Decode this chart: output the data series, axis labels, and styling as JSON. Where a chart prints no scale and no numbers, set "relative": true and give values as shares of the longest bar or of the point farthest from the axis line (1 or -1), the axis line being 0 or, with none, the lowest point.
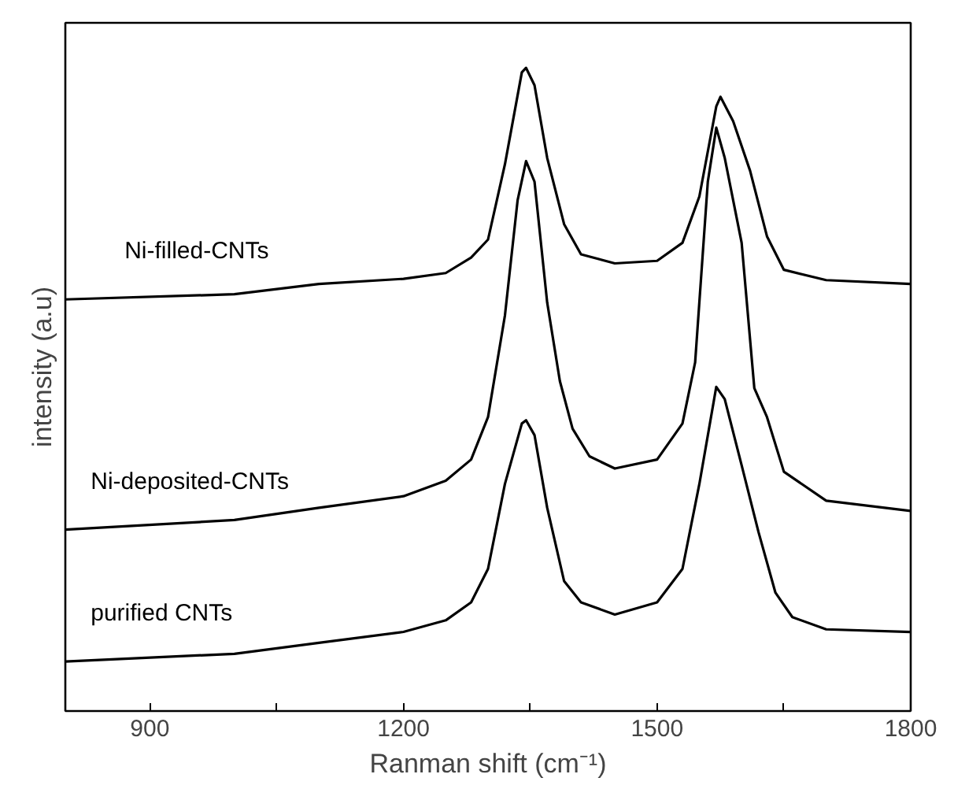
{
  "chart_data": {
    "type": "line",
    "xlabel": "Ranman shift (cm⁻¹)",
    "ylabel": "intensity (a.u)",
    "relative": true,
    "xlim": [
      800,
      1800
    ],
    "xticks": [
      900,
      {
        "value": 1050,
        "label": null
      },
      1200,
      {
        "value": 1350,
        "label": null
      },
      1500,
      {
        "value": 1650,
        "label": null
      },
      1800
    ],
    "grid": false,
    "legend": false,
    "marker": "none",
    "line_style": "solid",
    "series": [
      {
        "name": "Ni-filled-CNTs",
        "color": "#000000",
        "x": [
          800,
          1000,
          1100,
          1200,
          1250,
          1280,
          1300,
          1320,
          1340,
          1345,
          1355,
          1370,
          1390,
          1410,
          1450,
          1500,
          1530,
          1550,
          1570,
          1575,
          1590,
          1610,
          1630,
          1650,
          1700,
          1800
        ],
        "values": [
          0.64,
          0.648,
          0.664,
          0.672,
          0.681,
          0.705,
          0.733,
          0.85,
          0.993,
          1.0,
          0.973,
          0.86,
          0.757,
          0.71,
          0.696,
          0.7,
          0.728,
          0.8,
          0.94,
          0.955,
          0.917,
          0.84,
          0.738,
          0.686,
          0.67,
          0.664
        ]
      },
      {
        "name": "Ni-deposited-CNTs",
        "color": "#000000",
        "x": [
          800,
          1000,
          1100,
          1200,
          1250,
          1280,
          1300,
          1320,
          1335,
          1345,
          1355,
          1370,
          1385,
          1400,
          1420,
          1450,
          1500,
          1530,
          1545,
          1560,
          1570,
          1580,
          1600,
          1615,
          1630,
          1650,
          1700,
          1800
        ],
        "values": [
          0.282,
          0.297,
          0.316,
          0.334,
          0.358,
          0.391,
          0.457,
          0.615,
          0.794,
          0.855,
          0.823,
          0.635,
          0.513,
          0.439,
          0.396,
          0.377,
          0.391,
          0.447,
          0.542,
          0.823,
          0.907,
          0.86,
          0.728,
          0.502,
          0.457,
          0.372,
          0.327,
          0.311
        ]
      },
      {
        "name": "purified CNTs",
        "color": "#000000",
        "x": [
          800,
          1000,
          1100,
          1200,
          1250,
          1280,
          1300,
          1320,
          1340,
          1345,
          1355,
          1370,
          1390,
          1410,
          1450,
          1500,
          1530,
          1550,
          1570,
          1580,
          1600,
          1620,
          1640,
          1660,
          1700,
          1800
        ],
        "values": [
          0.077,
          0.089,
          0.106,
          0.123,
          0.141,
          0.169,
          0.221,
          0.353,
          0.447,
          0.452,
          0.429,
          0.316,
          0.202,
          0.169,
          0.15,
          0.169,
          0.221,
          0.353,
          0.504,
          0.485,
          0.382,
          0.278,
          0.184,
          0.146,
          0.127,
          0.123
        ]
      }
    ]
  }
}
